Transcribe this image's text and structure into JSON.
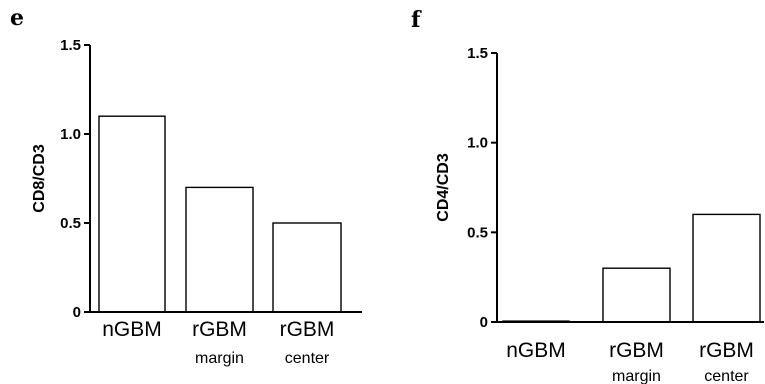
{
  "chart_data": [
    {
      "panel": "e",
      "type": "bar",
      "ylabel": "CD8/CD3",
      "categories": [
        {
          "label": "nGBM",
          "sublabel": ""
        },
        {
          "label": "rGBM",
          "sublabel": "margin"
        },
        {
          "label": "rGBM",
          "sublabel": "center"
        }
      ],
      "values": [
        1.1,
        0.7,
        0.5
      ],
      "ylim": [
        0,
        1.5
      ],
      "yticks": [
        "0",
        "0.5",
        "1.0",
        "1.5"
      ],
      "bar_fill": "#ffffff",
      "bar_stroke": "#000000",
      "grid": false
    },
    {
      "panel": "f",
      "type": "bar",
      "ylabel": "CD4/CD3",
      "categories": [
        {
          "label": "nGBM",
          "sublabel": ""
        },
        {
          "label": "rGBM",
          "sublabel": "margin"
        },
        {
          "label": "rGBM",
          "sublabel": "center"
        }
      ],
      "values": [
        0.005,
        0.3,
        0.6
      ],
      "ylim": [
        0,
        1.5
      ],
      "yticks": [
        "0",
        "0.5",
        "1.0",
        "1.5"
      ],
      "bar_fill": "#ffffff",
      "bar_stroke": "#000000",
      "grid": false
    }
  ]
}
